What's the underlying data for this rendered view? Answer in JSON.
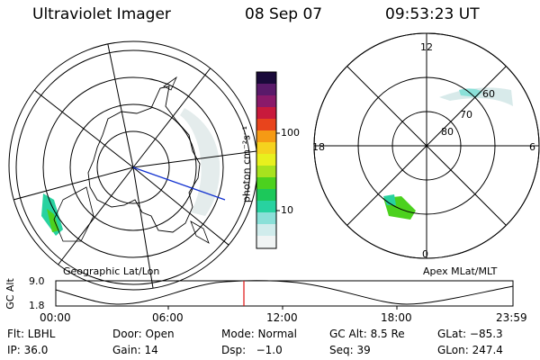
{
  "header": {
    "title": "Ultraviolet Imager",
    "date": "08 Sep 07",
    "time": "09:53:23 UT"
  },
  "left_panel": {
    "label": "Geographic Lat/Lon"
  },
  "right_panel": {
    "label": "Apex MLat/MLT",
    "mlt_labels": [
      "12",
      "18",
      "6",
      "0"
    ],
    "mlat_labels": [
      "60",
      "70",
      "80"
    ]
  },
  "colorbar": {
    "unit_label": "photon cm⁻²s⁻¹",
    "ticks": [
      "100",
      "10"
    ],
    "colors": [
      "#1a0a3a",
      "#5a1a6a",
      "#8a1a6a",
      "#c81a3c",
      "#e8441c",
      "#f59a14",
      "#f5d21e",
      "#e8f01e",
      "#a8e21e",
      "#4cd11e",
      "#1cc85a",
      "#28d2a0",
      "#8ae0d8",
      "#d0ecec",
      "#f0f4f4"
    ]
  },
  "timeline": {
    "axis_title": "GC Alt",
    "y_ticks": [
      "9.0",
      "1.8"
    ],
    "x_ticks": [
      "00:00",
      "06:00",
      "12:00",
      "18:00",
      "23:59"
    ],
    "current_time_fraction": 0.412
  },
  "info": {
    "filter": "Flt: LBHL",
    "door": "Door: Open",
    "mode": "Mode: Normal",
    "gc_alt": "GC Alt: 8.5 Re",
    "glat": "GLat: −85.3",
    "ip": "IP: 36.0",
    "gain": "Gain: 14",
    "dsp": "Dsp:   −1.0",
    "seq": "Seq: 39",
    "glon": "GLon: 247.4"
  }
}
